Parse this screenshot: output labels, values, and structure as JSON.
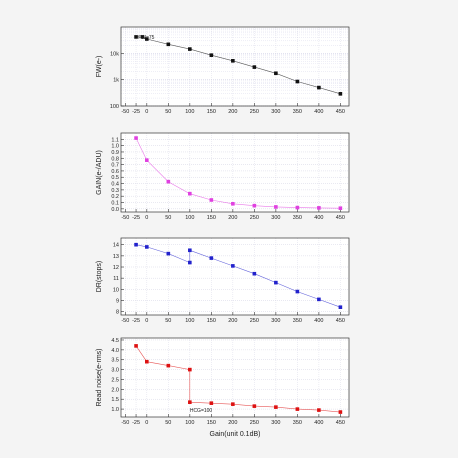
{
  "x_ticks": [
    "-50",
    "-25",
    "0",
    "50",
    "100",
    "150",
    "200",
    "250",
    "300",
    "350",
    "400",
    "450"
  ],
  "xlabel": "Gain(unit 0.1dB)",
  "chart_data": [
    {
      "type": "scatter",
      "ylabel": "FW(e-)",
      "yscale": "log",
      "ylim": [
        100,
        100000
      ],
      "xlim": [
        -60,
        470
      ],
      "y_ticks": [
        {
          "v": 100,
          "t": "100"
        },
        {
          "v": 1000,
          "t": "1k"
        },
        {
          "v": 10000,
          "t": "10k"
        }
      ],
      "color": "#111111",
      "grid": true,
      "annotation": {
        "text": "FW=75",
        "x": -20,
        "y": 35000
      },
      "series": [
        {
          "x": [
            -25,
            -10,
            0,
            50,
            100,
            150,
            200,
            250,
            300,
            350,
            400,
            450
          ],
          "y": [
            42000,
            42000,
            35000,
            22000,
            14500,
            8500,
            5200,
            3000,
            1750,
            850,
            500,
            290
          ]
        }
      ]
    },
    {
      "type": "scatter",
      "ylabel": "GAIN(e-/ADU)",
      "ylim": [
        -0.05,
        1.2
      ],
      "xlim": [
        -60,
        470
      ],
      "y_ticks": [
        {
          "v": 0.0,
          "t": "0.0"
        },
        {
          "v": 0.1,
          "t": "0.1"
        },
        {
          "v": 0.2,
          "t": "0.2"
        },
        {
          "v": 0.3,
          "t": "0.3"
        },
        {
          "v": 0.4,
          "t": "0.4"
        },
        {
          "v": 0.5,
          "t": "0.5"
        },
        {
          "v": 0.6,
          "t": "0.6"
        },
        {
          "v": 0.7,
          "t": "0.7"
        },
        {
          "v": 0.8,
          "t": "0.8"
        },
        {
          "v": 0.9,
          "t": "0.9"
        },
        {
          "v": 1.0,
          "t": "1.0"
        },
        {
          "v": 1.1,
          "t": "1.1"
        }
      ],
      "color": "#e040e0",
      "grid": true,
      "series": [
        {
          "x": [
            -25,
            0,
            50,
            100,
            150,
            200,
            250,
            300,
            350,
            400,
            450
          ],
          "y": [
            1.12,
            0.77,
            0.43,
            0.24,
            0.14,
            0.08,
            0.05,
            0.03,
            0.02,
            0.015,
            0.01
          ]
        }
      ]
    },
    {
      "type": "scatter",
      "ylabel": "DR(stops)",
      "ylim": [
        7.7,
        14.6
      ],
      "xlim": [
        -60,
        470
      ],
      "y_ticks": [
        {
          "v": 8,
          "t": "8"
        },
        {
          "v": 9,
          "t": "9"
        },
        {
          "v": 10,
          "t": "10"
        },
        {
          "v": 11,
          "t": "11"
        },
        {
          "v": 12,
          "t": "12"
        },
        {
          "v": 13,
          "t": "13"
        },
        {
          "v": 14,
          "t": "14"
        }
      ],
      "color": "#2222cc",
      "grid": true,
      "series": [
        {
          "x": [
            -25,
            0,
            50,
            100,
            100,
            150,
            200,
            250,
            300,
            350,
            400,
            450
          ],
          "y": [
            14.0,
            13.8,
            13.2,
            12.4,
            13.5,
            12.8,
            12.1,
            11.4,
            10.6,
            9.8,
            9.1,
            8.4
          ]
        }
      ]
    },
    {
      "type": "scatter",
      "ylabel": "Read noise(e-rms)",
      "ylim": [
        0.6,
        4.6
      ],
      "xlim": [
        -60,
        470
      ],
      "y_ticks": [
        {
          "v": 1.0,
          "t": "1.0"
        },
        {
          "v": 1.5,
          "t": "1.5"
        },
        {
          "v": 2.0,
          "t": "2.0"
        },
        {
          "v": 2.5,
          "t": "2.5"
        },
        {
          "v": 3.0,
          "t": "3.0"
        },
        {
          "v": 3.5,
          "t": "3.5"
        },
        {
          "v": 4.0,
          "t": "4.0"
        },
        {
          "v": 4.5,
          "t": "4.5"
        }
      ],
      "color": "#dd1111",
      "grid": true,
      "annotation": {
        "text": "HCG=100",
        "x": 100,
        "y": 0.85
      },
      "series": [
        {
          "x": [
            -25,
            0,
            50,
            100,
            100,
            150,
            200,
            250,
            300,
            350,
            400,
            450
          ],
          "y": [
            4.2,
            3.4,
            3.2,
            3.0,
            1.35,
            1.3,
            1.25,
            1.15,
            1.1,
            1.0,
            0.95,
            0.85
          ]
        }
      ]
    }
  ]
}
